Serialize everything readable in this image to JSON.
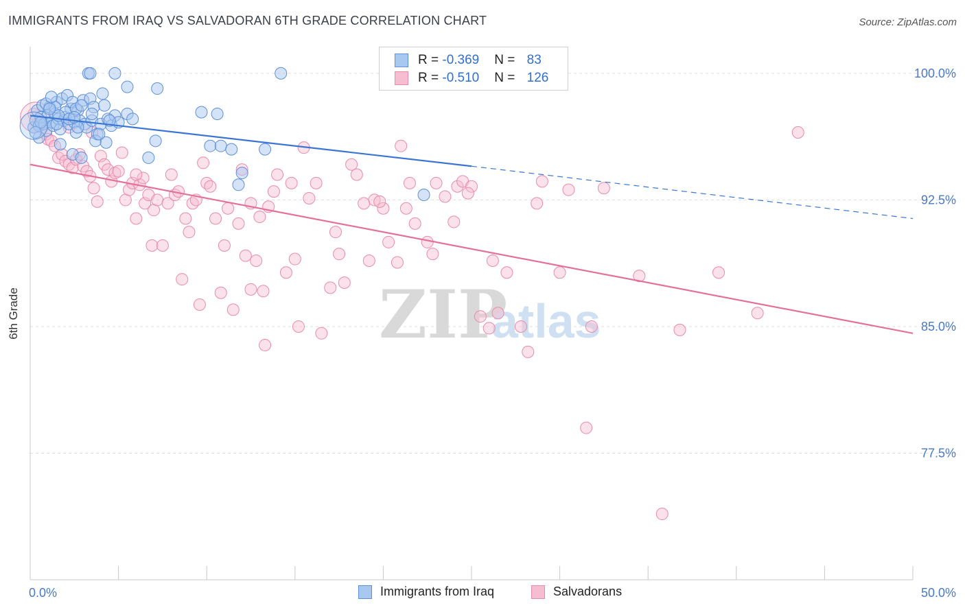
{
  "title": "IMMIGRANTS FROM IRAQ VS SALVADORAN 6TH GRADE CORRELATION CHART",
  "source": "Source: ZipAtlas.com",
  "watermark": {
    "zip": "ZIP",
    "atlas": "atlas"
  },
  "legend": {
    "rows": [
      {
        "r_label": "R = ",
        "r_value": "-0.369",
        "n_label": "N = ",
        "n_value": "83"
      },
      {
        "r_label": "R = ",
        "r_value": "-0.510",
        "n_label": "N = ",
        "n_value": "126"
      }
    ]
  },
  "colors": {
    "blue_fill": "#a9c8f0",
    "blue_stroke": "#5b8fd8",
    "blue_line": "#3a75d4",
    "pink_fill": "#f6bcd0",
    "pink_stroke": "#e88aab",
    "pink_line": "#e4709a",
    "grid": "#dddddd",
    "axis_text": "#4a78c8"
  },
  "chart_data": {
    "type": "scatter",
    "title": "IMMIGRANTS FROM IRAQ VS SALVADORAN 6TH GRADE CORRELATION CHART",
    "xlabel": "",
    "ylabel": "6th Grade",
    "xlim": [
      0,
      50
    ],
    "ylim": [
      70.0,
      101.5
    ],
    "x_tick_labels": [
      "0.0%",
      "50.0%"
    ],
    "y_ticks": [
      77.5,
      85.0,
      92.5,
      100.0
    ],
    "y_tick_labels": [
      "77.5%",
      "85.0%",
      "92.5%",
      "100.0%"
    ],
    "grid": true,
    "legend_position": "top-center",
    "series": [
      {
        "name": "Immigrants from Iraq",
        "color": "#5b8fd8",
        "r": -0.369,
        "n": 83,
        "trend": {
          "x0": 0,
          "y0": 97.5,
          "x1": 25,
          "y1": 94.5,
          "dash_x1": 50,
          "dash_y1": 91.4
        },
        "points": [
          [
            0.2,
            96.8
          ],
          [
            0.3,
            97.2
          ],
          [
            0.4,
            97.8
          ],
          [
            0.5,
            96.9
          ],
          [
            0.6,
            97.4
          ],
          [
            0.7,
            98.1
          ],
          [
            0.8,
            97.0
          ],
          [
            0.9,
            96.6
          ],
          [
            1.0,
            97.5
          ],
          [
            1.1,
            98.0
          ],
          [
            1.2,
            97.1
          ],
          [
            1.3,
            96.9
          ],
          [
            1.4,
            97.6
          ],
          [
            1.5,
            98.3
          ],
          [
            1.6,
            97.3
          ],
          [
            1.7,
            96.7
          ],
          [
            1.8,
            98.5
          ],
          [
            1.9,
            97.2
          ],
          [
            2.0,
            97.4
          ],
          [
            2.1,
            98.7
          ],
          [
            2.2,
            97.0
          ],
          [
            2.3,
            97.9
          ],
          [
            2.4,
            98.3
          ],
          [
            2.5,
            97.1
          ],
          [
            2.6,
            96.5
          ],
          [
            2.7,
            97.8
          ],
          [
            2.8,
            97.2
          ],
          [
            3.0,
            98.4
          ],
          [
            3.1,
            97.0
          ],
          [
            3.2,
            96.8
          ],
          [
            3.4,
            98.5
          ],
          [
            3.5,
            97.2
          ],
          [
            3.6,
            98.0
          ],
          [
            3.8,
            96.4
          ],
          [
            4.0,
            97.0
          ],
          [
            4.2,
            98.1
          ],
          [
            4.4,
            97.3
          ],
          [
            4.6,
            96.9
          ],
          [
            4.8,
            97.5
          ],
          [
            5.0,
            97.1
          ],
          [
            5.5,
            97.6
          ],
          [
            3.3,
            100.0
          ],
          [
            3.4,
            100.0
          ],
          [
            4.8,
            100.0
          ],
          [
            14.2,
            100.0
          ],
          [
            5.5,
            99.2
          ],
          [
            7.2,
            99.1
          ],
          [
            1.7,
            95.8
          ],
          [
            2.4,
            95.2
          ],
          [
            2.9,
            95.0
          ],
          [
            3.7,
            96.0
          ],
          [
            4.3,
            95.9
          ],
          [
            6.7,
            95.0
          ],
          [
            7.1,
            96.0
          ],
          [
            9.7,
            97.7
          ],
          [
            10.6,
            97.6
          ],
          [
            10.2,
            95.7
          ],
          [
            10.8,
            95.7
          ],
          [
            11.4,
            95.5
          ],
          [
            13.3,
            95.5
          ],
          [
            12.0,
            94.1
          ],
          [
            11.8,
            93.4
          ],
          [
            22.3,
            92.8
          ],
          [
            2.0,
            97.7
          ],
          [
            2.6,
            97.9
          ],
          [
            1.4,
            98.0
          ],
          [
            0.9,
            98.2
          ],
          [
            1.5,
            97.0
          ],
          [
            1.6,
            97.5
          ],
          [
            2.2,
            97.3
          ],
          [
            3.9,
            96.4
          ],
          [
            4.5,
            97.2
          ],
          [
            5.8,
            97.3
          ],
          [
            2.9,
            98.1
          ],
          [
            3.5,
            97.6
          ],
          [
            1.1,
            97.9
          ],
          [
            0.6,
            97.1
          ],
          [
            0.5,
            96.2
          ],
          [
            0.3,
            96.5
          ],
          [
            2.7,
            96.8
          ],
          [
            1.2,
            98.6
          ],
          [
            4.1,
            98.8
          ],
          [
            2.5,
            97.4
          ]
        ]
      },
      {
        "name": "Salvadorans",
        "color": "#e88aab",
        "r": -0.51,
        "n": 126,
        "trend": {
          "x0": 0,
          "y0": 94.6,
          "x1": 50,
          "y1": 84.6
        },
        "points": [
          [
            0.2,
            97.6
          ],
          [
            0.4,
            97.0
          ],
          [
            0.7,
            96.8
          ],
          [
            0.9,
            96.4
          ],
          [
            1.0,
            96.1
          ],
          [
            1.2,
            96.0
          ],
          [
            1.4,
            95.7
          ],
          [
            1.6,
            95.0
          ],
          [
            1.8,
            95.2
          ],
          [
            2.0,
            94.8
          ],
          [
            2.2,
            94.6
          ],
          [
            2.4,
            94.4
          ],
          [
            2.6,
            94.9
          ],
          [
            2.8,
            95.2
          ],
          [
            3.0,
            94.5
          ],
          [
            3.2,
            94.2
          ],
          [
            3.4,
            93.9
          ],
          [
            3.6,
            93.2
          ],
          [
            3.8,
            92.4
          ],
          [
            4.0,
            95.1
          ],
          [
            4.2,
            94.6
          ],
          [
            4.4,
            94.3
          ],
          [
            4.6,
            93.6
          ],
          [
            4.8,
            94.1
          ],
          [
            5.0,
            94.2
          ],
          [
            5.2,
            95.3
          ],
          [
            5.4,
            92.5
          ],
          [
            5.6,
            93.1
          ],
          [
            5.8,
            93.5
          ],
          [
            6.0,
            91.4
          ],
          [
            6.2,
            93.4
          ],
          [
            6.4,
            93.8
          ],
          [
            6.5,
            92.3
          ],
          [
            6.7,
            92.8
          ],
          [
            6.9,
            89.8
          ],
          [
            7.0,
            91.9
          ],
          [
            7.2,
            92.5
          ],
          [
            7.5,
            89.8
          ],
          [
            7.8,
            92.3
          ],
          [
            8.0,
            94.0
          ],
          [
            8.2,
            92.8
          ],
          [
            8.4,
            93.0
          ],
          [
            8.6,
            87.8
          ],
          [
            8.8,
            91.4
          ],
          [
            9.0,
            90.6
          ],
          [
            9.2,
            92.3
          ],
          [
            9.4,
            92.5
          ],
          [
            9.6,
            86.3
          ],
          [
            9.8,
            94.7
          ],
          [
            10.0,
            93.5
          ],
          [
            10.2,
            93.3
          ],
          [
            10.5,
            91.4
          ],
          [
            10.8,
            87.0
          ],
          [
            11.0,
            89.8
          ],
          [
            11.2,
            92.0
          ],
          [
            11.5,
            86.0
          ],
          [
            11.8,
            91.1
          ],
          [
            12.0,
            94.3
          ],
          [
            12.2,
            89.2
          ],
          [
            12.5,
            92.3
          ],
          [
            12.8,
            88.9
          ],
          [
            13.0,
            91.5
          ],
          [
            13.3,
            83.9
          ],
          [
            13.5,
            92.1
          ],
          [
            13.8,
            93.0
          ],
          [
            14.0,
            94.0
          ],
          [
            14.5,
            88.2
          ],
          [
            14.8,
            93.5
          ],
          [
            15.0,
            89.0
          ],
          [
            15.5,
            95.6
          ],
          [
            15.8,
            92.6
          ],
          [
            16.2,
            93.5
          ],
          [
            16.5,
            84.6
          ],
          [
            17.0,
            87.3
          ],
          [
            17.3,
            90.6
          ],
          [
            17.5,
            89.3
          ],
          [
            17.8,
            87.6
          ],
          [
            18.2,
            94.6
          ],
          [
            18.5,
            94.0
          ],
          [
            18.9,
            92.3
          ],
          [
            19.2,
            88.9
          ],
          [
            19.5,
            92.5
          ],
          [
            20.0,
            92.0
          ],
          [
            20.3,
            90.0
          ],
          [
            20.8,
            88.8
          ],
          [
            21.0,
            95.7
          ],
          [
            21.3,
            92.0
          ],
          [
            21.5,
            93.5
          ],
          [
            21.8,
            91.1
          ],
          [
            22.5,
            90.0
          ],
          [
            23.0,
            93.5
          ],
          [
            23.5,
            92.7
          ],
          [
            24.0,
            91.2
          ],
          [
            24.2,
            93.3
          ],
          [
            24.5,
            93.6
          ],
          [
            25.0,
            93.3
          ],
          [
            25.5,
            85.6
          ],
          [
            26.0,
            84.9
          ],
          [
            26.5,
            85.8
          ],
          [
            27.0,
            88.2
          ],
          [
            27.8,
            85.0
          ],
          [
            28.2,
            83.5
          ],
          [
            29.0,
            93.6
          ],
          [
            30.0,
            88.2
          ],
          [
            31.5,
            79.0
          ],
          [
            31.8,
            85.0
          ],
          [
            34.5,
            88.0
          ],
          [
            35.8,
            73.9
          ],
          [
            36.8,
            84.8
          ],
          [
            39.0,
            88.2
          ],
          [
            41.2,
            85.8
          ],
          [
            43.5,
            96.5
          ],
          [
            28.7,
            92.3
          ],
          [
            22.8,
            89.3
          ],
          [
            26.2,
            88.9
          ],
          [
            19.8,
            92.4
          ],
          [
            12.5,
            87.2
          ],
          [
            13.2,
            87.1
          ],
          [
            15.2,
            85.0
          ],
          [
            24.8,
            92.9
          ],
          [
            30.5,
            93.1
          ],
          [
            32.5,
            93.2
          ],
          [
            3.5,
            96.5
          ],
          [
            2.2,
            96.8
          ],
          [
            6.0,
            94.0
          ]
        ]
      }
    ]
  },
  "bottom_legend": [
    {
      "label": "Immigrants from Iraq"
    },
    {
      "label": "Salvadorans"
    }
  ]
}
